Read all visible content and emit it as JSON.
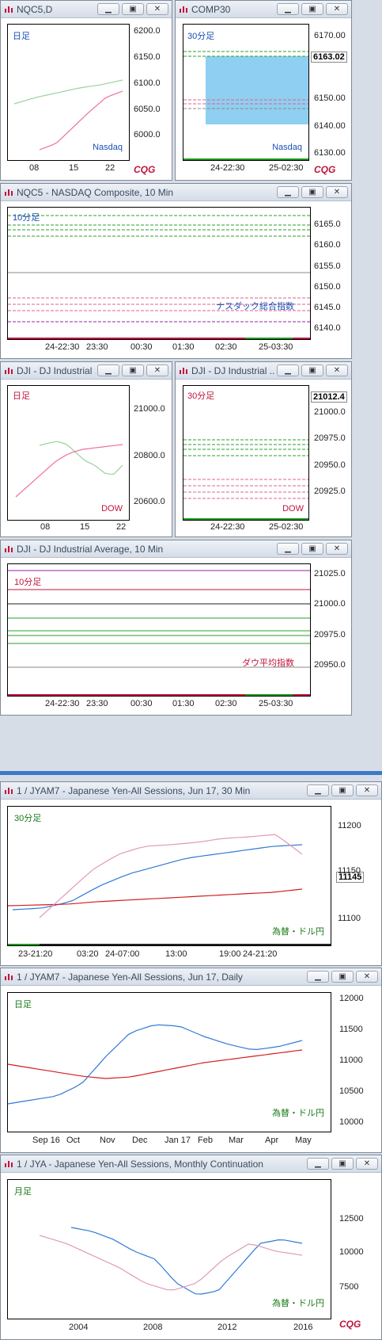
{
  "colors": {
    "up": "#1f5fc4",
    "down": "#b51f1f",
    "axis": "#222222"
  },
  "windows": [
    {
      "id": "w1",
      "title": "NQC5,D",
      "tf": "日足",
      "tf_color": "#1a4fb5",
      "name": "Nasdaq",
      "name_color": "#1a4fb5",
      "y_labels": [
        "6200.0",
        "6150.0",
        "6100.0",
        "6050.0",
        "6000.0"
      ],
      "x_labels": [
        "08",
        "15",
        "22"
      ],
      "logo": "CQG"
    },
    {
      "id": "w2",
      "title": "COMP30",
      "tf": "30分足",
      "tf_color": "#1a4fb5",
      "name": "Nasdaq",
      "name_color": "#1a4fb5",
      "price": "6163.02",
      "y_labels": [
        "6170.00",
        "6160.00",
        "6150.00",
        "6140.00",
        "6130.00"
      ],
      "x_labels": [
        "24-22:30",
        "25-02:30"
      ],
      "logo": "CQG"
    },
    {
      "id": "w3",
      "title": "NQC5 - NASDAQ Composite, 10 Min",
      "tf": "10分足",
      "tf_color": "#1a4fb5",
      "name": "ナスダック総合指数",
      "name_color": "#1a4fb5",
      "y_labels": [
        "6165.0",
        "6160.0",
        "6155.0",
        "6150.0",
        "6145.0",
        "6140.0"
      ],
      "x_labels": [
        "24-22:30",
        "23:30",
        "00:30",
        "01:30",
        "02:30",
        "25-03:30"
      ]
    },
    {
      "id": "w4",
      "title": "DJI - DJ Industrial ...",
      "tf": "日足",
      "tf_color": "#c0143c",
      "name": "DOW",
      "name_color": "#c0143c",
      "y_labels": [
        "21000.0",
        "20800.0",
        "20600.0"
      ],
      "x_labels": [
        "08",
        "15",
        "22"
      ]
    },
    {
      "id": "w5",
      "title": "DJI - DJ Industrial ...",
      "tf": "30分足",
      "tf_color": "#c0143c",
      "name": "DOW",
      "name_color": "#c0143c",
      "price": "21012.4",
      "y_labels": [
        "21000.0",
        "20975.0",
        "20950.0",
        "20925.0"
      ],
      "x_labels": [
        "24-22:30",
        "25-02:30"
      ]
    },
    {
      "id": "w6",
      "title": "DJI - DJ Industrial Average, 10 Min",
      "tf": "10分足",
      "tf_color": "#c0143c",
      "name": "ダウ平均指数",
      "name_color": "#c0143c",
      "y_labels": [
        "21025.0",
        "21000.0",
        "20975.0",
        "20950.0"
      ],
      "x_labels": [
        "24-22:30",
        "23:30",
        "00:30",
        "01:30",
        "02:30",
        "25-03:30"
      ]
    },
    {
      "id": "w7",
      "title": "1 / JYAM7 - Japanese Yen-All Sessions, Jun 17, 30 Min",
      "tf": "30分足",
      "tf_color": "#1a7a1a",
      "name": "為替・ドル円",
      "name_color": "#1a7a1a",
      "price": "11145",
      "y_labels": [
        "11200",
        "11150",
        "11100"
      ],
      "x_labels": [
        "23-21:20",
        "03:20",
        "24-07:00",
        "13:00",
        "19:00",
        "24-21:20"
      ]
    },
    {
      "id": "w8",
      "title": "1 / JYAM7 - Japanese Yen-All Sessions, Jun 17, Daily",
      "tf": "日足",
      "tf_color": "#1a7a1a",
      "name": "為替・ドル円",
      "name_color": "#1a7a1a",
      "y_labels": [
        "12000",
        "11500",
        "11000",
        "10500",
        "10000"
      ],
      "x_labels": [
        "Sep 16",
        "Oct",
        "Nov",
        "Dec",
        "Jan 17",
        "Feb",
        "Mar",
        "Apr",
        "May"
      ]
    },
    {
      "id": "w9",
      "title": "1 / JYA - Japanese Yen-All Sessions, Monthly Continuation",
      "tf": "月足",
      "tf_color": "#1a7a1a",
      "name": "為替・ドル円",
      "name_color": "#1a7a1a",
      "y_labels": [
        "12500",
        "10000",
        "7500"
      ],
      "x_labels": [
        "2004",
        "2008",
        "2012",
        "2016"
      ],
      "logo": "CQG"
    }
  ],
  "chart_data": [
    {
      "chart": "NQC5,D",
      "type": "candlestick",
      "ylim": [
        5960,
        6220
      ],
      "last": 6163.02
    },
    {
      "chart": "COMP30",
      "type": "candlestick",
      "ylim": [
        6125,
        6175
      ],
      "last": 6163.02
    },
    {
      "chart": "NQC5 10 Min",
      "type": "candlestick",
      "ylim": [
        6138,
        6168
      ]
    },
    {
      "chart": "DJI Daily",
      "type": "candlestick",
      "ylim": [
        20500,
        21100
      ]
    },
    {
      "chart": "DJI 30 Min",
      "type": "candlestick",
      "ylim": [
        20905,
        21025
      ],
      "last": 21012.4
    },
    {
      "chart": "DJI 10 Min",
      "type": "candlestick",
      "ylim": [
        20930,
        21035
      ]
    },
    {
      "chart": "JYAM7 30 Min",
      "type": "candlestick",
      "ylim": [
        11080,
        11225
      ],
      "last": 11145
    },
    {
      "chart": "JYAM7 Daily",
      "type": "candlestick",
      "ylim": [
        9800,
        12050
      ]
    },
    {
      "chart": "JYA Monthly",
      "type": "candlestick",
      "ylim": [
        7000,
        13800
      ]
    }
  ]
}
